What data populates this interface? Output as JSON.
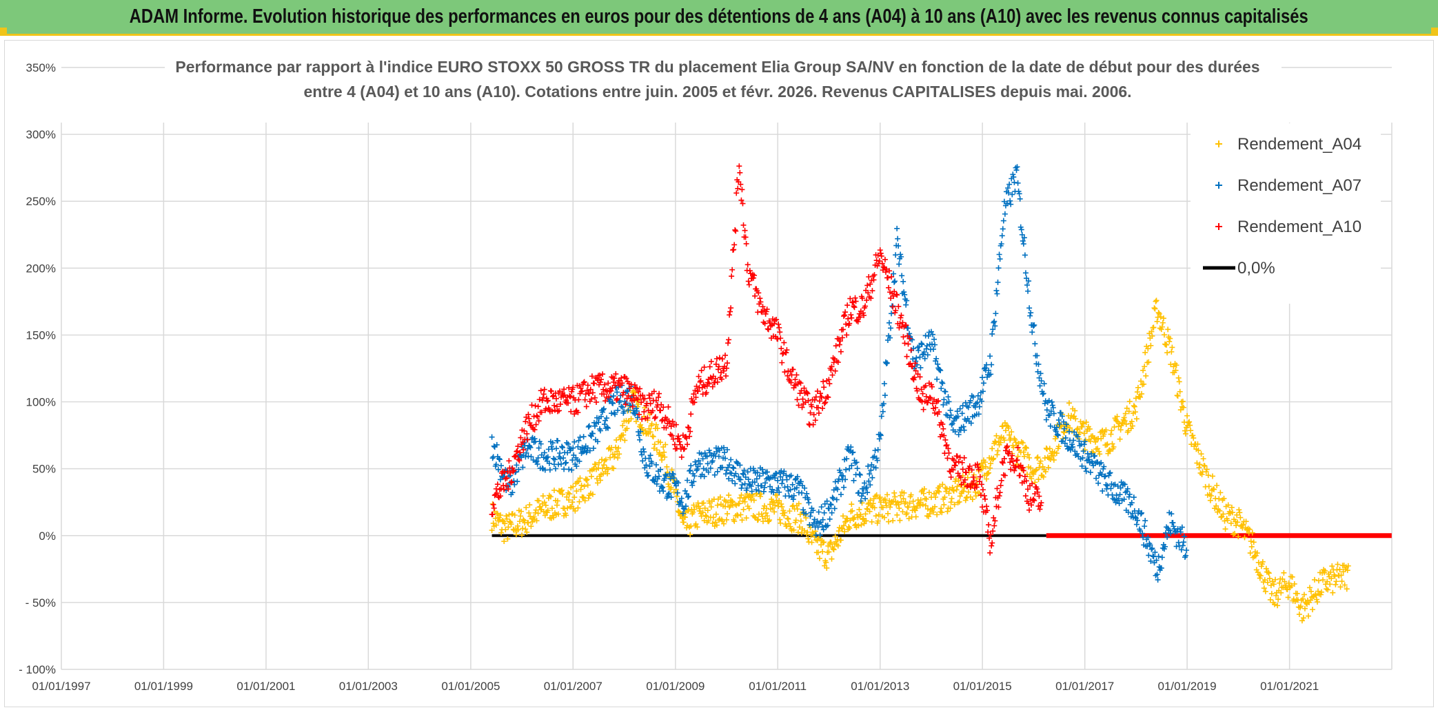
{
  "banner": {
    "title": "ADAM Informe. Evolution historique des performances en euros pour des détentions de 4 ans (A04) à 10 ans (A10) avec les revenus connus capitalisés"
  },
  "colors": {
    "banner_bg": "#7dc87a",
    "banner_border": "#f0c419",
    "A04": "#ffc000",
    "A07": "#0070c0",
    "A10": "#ff0000",
    "zero": "#000000",
    "grid": "#d9d9d9"
  },
  "chart_data": {
    "type": "scatter",
    "title_lines": [
      "Performance par rapport à l'indice EURO STOXX 50 GROSS TR  du placement Elia Group SA/NV en fonction de la date de début pour des durées",
      "entre 4 (A04) et 10 ans (A10). Cotations entre juin. 2005 et févr. 2026. Revenus CAPITALISES depuis mai. 2006."
    ],
    "x_axis": {
      "type": "date",
      "range": [
        "1997-01-01",
        "2023-01-01"
      ],
      "tick_labels": [
        "01/01/1997",
        "01/01/1999",
        "01/01/2001",
        "01/01/2003",
        "01/01/2005",
        "01/01/2007",
        "01/01/2009",
        "01/01/2011",
        "01/01/2013",
        "01/01/2015",
        "01/01/2017",
        "01/01/2019",
        "01/01/2021"
      ]
    },
    "y_axis": {
      "range": [
        -100,
        350
      ],
      "ticks": [
        350,
        300,
        250,
        200,
        150,
        100,
        50,
        0,
        -50,
        -100
      ],
      "tick_labels": [
        "350%",
        "300%",
        "250%",
        "200%",
        "150%",
        "100%",
        "50%",
        "0%",
        "- 50%",
        "- 100%"
      ]
    },
    "grid": true,
    "legend_position": "top-right",
    "legend": [
      "Rendement_A04",
      "Rendement_A07",
      "Rendement_A10",
      "0,0%"
    ],
    "series": [
      {
        "name": "Rendement_A04",
        "marker": "+",
        "x": [
          "2005-06-01",
          "2005-09-01",
          "2006-01-01",
          "2006-06-01",
          "2007-01-01",
          "2007-06-01",
          "2007-11-01",
          "2008-03-01",
          "2008-06-01",
          "2008-10-01",
          "2009-01-01",
          "2009-03-01",
          "2009-06-01",
          "2010-01-01",
          "2010-06-01",
          "2011-01-01",
          "2011-04-01",
          "2011-07-01",
          "2011-09-01",
          "2012-01-01",
          "2012-06-01",
          "2013-01-01",
          "2013-06-01",
          "2014-01-01",
          "2014-06-01",
          "2014-12-01",
          "2015-03-01",
          "2015-06-01",
          "2015-09-01",
          "2016-01-01",
          "2016-04-01",
          "2016-09-01",
          "2017-01-01",
          "2017-06-01",
          "2018-01-01",
          "2018-06-01",
          "2018-09-01",
          "2019-01-01",
          "2019-06-01",
          "2019-10-01",
          "2020-01-01",
          "2020-04-01",
          "2020-09-01",
          "2021-01-01",
          "2021-04-01",
          "2021-09-01",
          "2022-03-01"
        ],
        "y": [
          15,
          5,
          10,
          20,
          28,
          42,
          60,
          100,
          85,
          65,
          30,
          5,
          15,
          20,
          22,
          20,
          15,
          12,
          -5,
          -15,
          15,
          20,
          22,
          25,
          30,
          40,
          60,
          75,
          65,
          50,
          55,
          90,
          75,
          70,
          95,
          170,
          140,
          80,
          40,
          15,
          10,
          -5,
          -45,
          -35,
          -55,
          -35,
          -30
        ]
      },
      {
        "name": "Rendement_A07",
        "marker": "+",
        "x": [
          "2005-06-01",
          "2005-10-01",
          "2006-02-01",
          "2006-06-01",
          "2007-01-01",
          "2007-06-01",
          "2007-11-01",
          "2008-03-01",
          "2008-06-01",
          "2008-10-01",
          "2009-01-01",
          "2009-03-01",
          "2009-06-01",
          "2010-01-01",
          "2010-06-01",
          "2011-01-01",
          "2011-06-01",
          "2011-10-01",
          "2012-02-01",
          "2012-06-01",
          "2012-09-01",
          "2013-01-01",
          "2013-05-01",
          "2013-09-01",
          "2014-01-01",
          "2014-06-01",
          "2014-12-01",
          "2015-03-01",
          "2015-06-01",
          "2015-09-01",
          "2016-01-01",
          "2016-04-01",
          "2016-09-01",
          "2017-01-01",
          "2017-06-01",
          "2018-01-01",
          "2018-06-01",
          "2018-09-01",
          "2019-01-01"
        ],
        "y": [
          70,
          35,
          65,
          60,
          60,
          75,
          100,
          105,
          55,
          40,
          35,
          25,
          55,
          55,
          40,
          40,
          35,
          5,
          25,
          60,
          30,
          70,
          220,
          130,
          145,
          80,
          100,
          130,
          240,
          270,
          150,
          95,
          75,
          60,
          40,
          20,
          -25,
          10,
          -10
        ]
      },
      {
        "name": "Rendement_A10",
        "marker": "+",
        "x": [
          "2005-06-01",
          "2005-10-01",
          "2006-02-01",
          "2006-06-01",
          "2007-01-01",
          "2007-06-01",
          "2008-01-01",
          "2008-06-01",
          "2008-09-01",
          "2009-01-01",
          "2009-03-01",
          "2009-06-01",
          "2010-01-01",
          "2010-04-01",
          "2010-06-01",
          "2010-09-01",
          "2011-01-01",
          "2011-04-01",
          "2011-09-01",
          "2012-01-01",
          "2012-06-01",
          "2012-09-01",
          "2013-01-01",
          "2013-06-01",
          "2013-11-01",
          "2014-01-01",
          "2014-06-01",
          "2014-12-01",
          "2015-03-01",
          "2015-06-01",
          "2015-09-01",
          "2015-12-01",
          "2016-03-01"
        ],
        "y": [
          25,
          45,
          80,
          100,
          100,
          110,
          110,
          95,
          100,
          75,
          65,
          110,
          130,
          280,
          200,
          170,
          150,
          120,
          90,
          115,
          170,
          170,
          210,
          160,
          100,
          110,
          50,
          45,
          -5,
          55,
          60,
          30,
          25
        ]
      }
    ],
    "zero_line": {
      "name": "0,0%",
      "value": 0,
      "black_from": "2005-06-01",
      "black_to": "2016-04-01",
      "red_from": "2016-04-01",
      "red_to": "2022-12-31"
    }
  }
}
